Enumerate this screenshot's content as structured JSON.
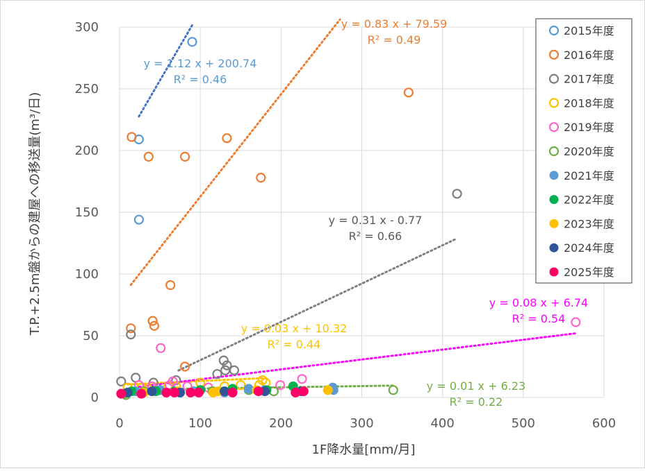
{
  "chart_data": {
    "type": "scatter",
    "xlabel": "1F降水量[mm/月]",
    "ylabel": "T.P.+2.5m盤からの建屋への移送量(m³/日)",
    "xlim": [
      0,
      600
    ],
    "ylim": [
      0,
      300
    ],
    "x_ticks": [
      "0",
      "100",
      "200",
      "300",
      "400",
      "500",
      "600"
    ],
    "y_ticks": [
      "0",
      "50",
      "100",
      "150",
      "200",
      "250",
      "300"
    ],
    "grid": "both",
    "legend_position": "right",
    "series": [
      {
        "name": "2015年度",
        "color": "#5b9bd5",
        "filled": false,
        "points": [
          [
            90,
            288
          ],
          [
            24,
            209
          ],
          [
            24,
            144
          ]
        ],
        "trendline": {
          "x0": 24,
          "x1": 90
        },
        "equation": "y = 1.12 x + 200.74",
        "r2": "R² = 0.46"
      },
      {
        "name": "2016年度",
        "color": "#ed7d31",
        "filled": false,
        "points": [
          [
            15,
            211
          ],
          [
            36,
            195
          ],
          [
            81,
            195
          ],
          [
            133,
            210
          ],
          [
            175,
            178
          ],
          [
            358,
            247
          ],
          [
            63,
            91
          ],
          [
            14,
            56
          ],
          [
            41,
            62
          ],
          [
            43,
            58
          ],
          [
            81,
            25
          ]
        ],
        "trendline": {
          "x0": 14,
          "x1": 273
        },
        "equation": "y = 0.83 x + 79.59",
        "r2": "R² = 0.49"
      },
      {
        "name": "2017年度",
        "color": "#7f7f7f",
        "filled": false,
        "points": [
          [
            418,
            165
          ],
          [
            14,
            51
          ],
          [
            129,
            30
          ],
          [
            131,
            22
          ],
          [
            142,
            22
          ],
          [
            121,
            19
          ],
          [
            20,
            16
          ],
          [
            2,
            13
          ],
          [
            42,
            12
          ],
          [
            70,
            14
          ],
          [
            133,
            26
          ]
        ],
        "trendline": {
          "x0": 73,
          "x1": 418
        },
        "equation": "y = 0.31 x - 0.77",
        "r2": "R² = 0.66"
      },
      {
        "name": "2018年度",
        "color": "#ffc000",
        "filled": false,
        "points": [
          [
            10,
            8
          ],
          [
            27,
            8
          ],
          [
            60,
            9
          ],
          [
            100,
            12
          ],
          [
            177,
            14
          ],
          [
            181,
            12
          ],
          [
            173,
            10
          ],
          [
            130,
            9
          ],
          [
            70,
            9
          ],
          [
            150,
            10
          ],
          [
            35,
            7
          ]
        ],
        "trendline": {
          "x0": 10,
          "x1": 181
        },
        "equation": "y = 0.03 x + 10.32",
        "r2": "R² = 0.44"
      },
      {
        "name": "2019年度",
        "color": "#ff66cc",
        "filled": false,
        "points": [
          [
            565,
            61
          ],
          [
            51,
            40
          ],
          [
            226,
            15
          ],
          [
            199,
            10
          ],
          [
            24,
            10
          ],
          [
            62,
            10
          ],
          [
            66,
            13
          ],
          [
            84,
            9
          ],
          [
            110,
            8
          ],
          [
            40,
            9
          ]
        ],
        "trendline": {
          "x0": 24,
          "x1": 565
        },
        "equation": "y = 0.08 x + 6.74",
        "r2": "R² = 0.54"
      },
      {
        "name": "2020年度",
        "color": "#70ad47",
        "filled": false,
        "points": [
          [
            339,
            6
          ],
          [
            6,
            3
          ],
          [
            30,
            5
          ],
          [
            50,
            6
          ],
          [
            115,
            5
          ],
          [
            160,
            6
          ],
          [
            191,
            5
          ],
          [
            8,
            2
          ],
          [
            100,
            6
          ]
        ],
        "trendline": {
          "x0": 6,
          "x1": 339
        },
        "equation": "y = 0.01 x + 6.23",
        "r2": "R² = 0.22"
      },
      {
        "name": "2021年度",
        "color": "#5b9bd5",
        "filled": true,
        "points": [
          [
            264,
            8
          ],
          [
            265,
            6
          ],
          [
            160,
            7
          ],
          [
            130,
            4
          ],
          [
            50,
            6
          ],
          [
            20,
            5
          ],
          [
            180,
            6
          ],
          [
            92,
            5
          ]
        ]
      },
      {
        "name": "2022年度",
        "color": "#00b050",
        "filled": true,
        "points": [
          [
            215,
            9
          ],
          [
            140,
            7
          ],
          [
            100,
            6
          ],
          [
            45,
            5
          ],
          [
            15,
            5
          ],
          [
            182,
            6
          ],
          [
            68,
            5
          ]
        ]
      },
      {
        "name": "2023年度",
        "color": "#ffc000",
        "filled": true,
        "points": [
          [
            258,
            6
          ],
          [
            116,
            4
          ],
          [
            72,
            5
          ],
          [
            30,
            4
          ],
          [
            170,
            6
          ],
          [
            122,
            5
          ]
        ]
      },
      {
        "name": "2024年度",
        "color": "#2f5597",
        "filled": true,
        "points": [
          [
            130,
            5
          ],
          [
            75,
            4
          ],
          [
            40,
            5
          ],
          [
            10,
            4
          ],
          [
            225,
            5
          ],
          [
            180,
            5
          ]
        ]
      },
      {
        "name": "2025年度",
        "color": "#ff0066",
        "filled": true,
        "points": [
          [
            2,
            3
          ],
          [
            27,
            3
          ],
          [
            58,
            4
          ],
          [
            68,
            4
          ],
          [
            98,
            4
          ],
          [
            172,
            5
          ],
          [
            218,
            4
          ],
          [
            228,
            5
          ],
          [
            140,
            4
          ],
          [
            88,
            4
          ]
        ]
      }
    ]
  }
}
